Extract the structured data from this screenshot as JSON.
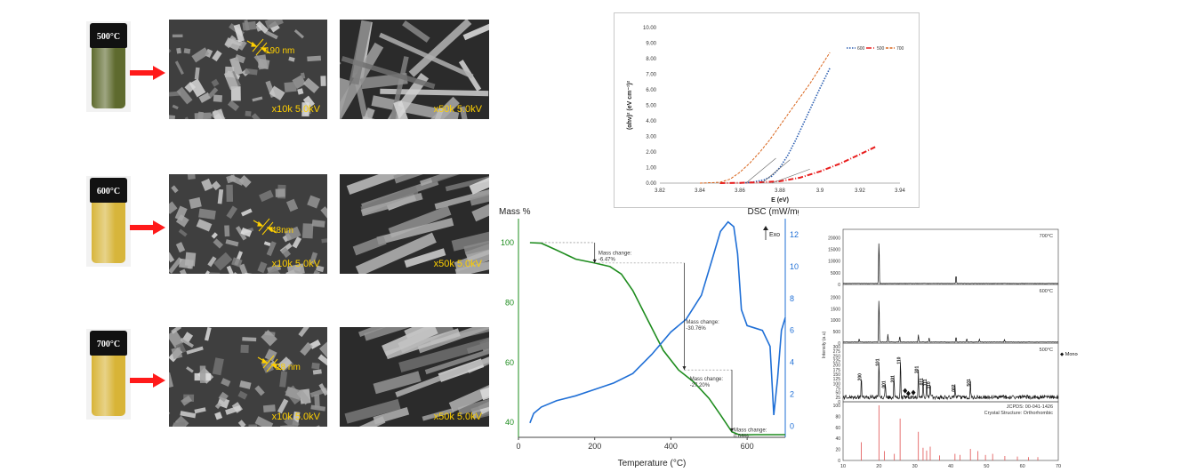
{
  "samples": [
    {
      "temp": "500°C",
      "glass_color": "#5e6a2e",
      "sem_low_caption": "x10k  5.0kV",
      "sem_high_caption": "x50k  5.0kV",
      "measure": "190 nm"
    },
    {
      "temp": "600°C",
      "glass_color": "#d7b53b",
      "sem_low_caption": "x10k  5.0kV",
      "sem_high_caption": "x50k  5.0kV",
      "measure": "48nm"
    },
    {
      "temp": "700°C",
      "glass_color": "#d8b437",
      "sem_low_caption": "x10k  5.0kV",
      "sem_high_caption": "x50k  5.0kV",
      "measure": "28 nm"
    }
  ],
  "arrow_color": "#ff1a1a",
  "chart_data": [
    {
      "type": "line",
      "xlabel": "E (eV)",
      "ylabel": "(αhν)² (eV cm⁻¹)²",
      "xlim": [
        3.82,
        3.94
      ],
      "ylim": [
        0,
        10
      ],
      "x_ticks": [
        "3.82",
        "3.84",
        "3.86",
        "3.88",
        "3.9",
        "3.92",
        "3.94"
      ],
      "y_ticks": [
        "0.00",
        "1.00",
        "2.00",
        "3.00",
        "4.00",
        "5.00",
        "6.00",
        "7.00",
        "8.00",
        "9.00",
        "10.00"
      ],
      "legend": "top-right",
      "series": [
        {
          "name": "600",
          "color": "#2a5db0",
          "x": [
            3.86,
            3.866,
            3.872,
            3.876,
            3.88,
            3.884,
            3.888,
            3.892,
            3.896,
            3.9,
            3.905
          ],
          "y": [
            0.0,
            0.05,
            0.2,
            0.45,
            1.0,
            1.8,
            2.8,
            3.9,
            5.0,
            6.1,
            7.4
          ]
        },
        {
          "name": "500",
          "color": "#e81d1d",
          "x": [
            3.85,
            3.86,
            3.87,
            3.88,
            3.89,
            3.9,
            3.91,
            3.92,
            3.928
          ],
          "y": [
            0.0,
            0.02,
            0.05,
            0.12,
            0.35,
            0.75,
            1.25,
            1.85,
            2.35
          ]
        },
        {
          "name": "700",
          "color": "#d9651c",
          "x": [
            3.84,
            3.85,
            3.855,
            3.86,
            3.865,
            3.87,
            3.875,
            3.88,
            3.885,
            3.89,
            3.895,
            3.9,
            3.905
          ],
          "y": [
            0.0,
            0.05,
            0.25,
            0.7,
            1.3,
            2.0,
            2.8,
            3.7,
            4.6,
            5.5,
            6.4,
            7.4,
            8.4
          ]
        }
      ]
    },
    {
      "type": "line",
      "xlabel": "Temperature (°C)",
      "ylabel": "Mass %",
      "ylabel_right": "DSC (mW/mg)",
      "exo_label": "Exo",
      "xlim": [
        0,
        700
      ],
      "ylim": [
        35,
        108
      ],
      "ylim_right": [
        -0.7,
        13
      ],
      "x_ticks": [
        "0",
        "200",
        "400",
        "600"
      ],
      "y_ticks": [
        "40",
        "60",
        "80",
        "100"
      ],
      "y_ticks_right": [
        "0",
        "2",
        "4",
        "6",
        "8",
        "10",
        "12"
      ],
      "series": [
        {
          "name": "Mass",
          "color": "#1e8c1e",
          "x": [
            30,
            60,
            100,
            150,
            200,
            240,
            270,
            300,
            340,
            380,
            420,
            460,
            500,
            530,
            560,
            580,
            620,
            700
          ],
          "y": [
            100,
            99.8,
            97.5,
            94.5,
            93.2,
            92.0,
            89.5,
            84.0,
            74.0,
            64.0,
            57.5,
            53.5,
            48.0,
            42.5,
            36.8,
            35.8,
            35.9,
            35.9
          ]
        },
        {
          "name": "DSC",
          "color": "#1f6fd6",
          "x": [
            30,
            40,
            60,
            100,
            150,
            200,
            250,
            300,
            350,
            400,
            440,
            480,
            510,
            530,
            550,
            565,
            575,
            585,
            600,
            640,
            660,
            670,
            680,
            690,
            700
          ],
          "y": [
            0.2,
            0.8,
            1.2,
            1.6,
            1.9,
            2.3,
            2.7,
            3.3,
            4.5,
            5.9,
            6.7,
            8.2,
            10.6,
            12.2,
            12.8,
            12.5,
            10.8,
            7.3,
            6.3,
            6.0,
            5.0,
            0.7,
            3.0,
            6.0,
            6.8
          ]
        }
      ],
      "annotations": [
        {
          "text": [
            "Mass change:",
            "-6.47%"
          ],
          "x": 205,
          "y": 96
        },
        {
          "text": [
            "Mass change:",
            "-30.76%"
          ],
          "x": 435,
          "y": 73
        },
        {
          "text": [
            "Mass change:",
            "-27.20%"
          ],
          "x": 445,
          "y": 54
        },
        {
          "text": [
            "Mass change:",
            "0.09%"
          ],
          "x": 560,
          "y": 37
        }
      ]
    },
    {
      "type": "line",
      "xlabel": "2θ (degree)",
      "ylabel": "Intensity (a.u)",
      "xlim": [
        10,
        70
      ],
      "x_ticks": [
        "10",
        "20",
        "30",
        "40",
        "50",
        "60",
        "70"
      ],
      "panels": [
        {
          "label": "700°C",
          "ylim": [
            0,
            22000
          ],
          "y_ticks": [
            "0",
            "5000",
            "10000",
            "15000",
            "20000"
          ],
          "peaks": [
            [
              20.0,
              19000
            ],
            [
              41.5,
              3600
            ]
          ]
        },
        {
          "label": "600°C",
          "ylim": [
            0,
            2400
          ],
          "y_ticks": [
            "0",
            "500",
            "1000",
            "1500",
            "2000"
          ],
          "peaks": [
            [
              14.5,
              150
            ],
            [
              20.0,
              2000
            ],
            [
              22.5,
              350
            ],
            [
              25.8,
              250
            ],
            [
              31.0,
              320
            ],
            [
              34.0,
              180
            ],
            [
              41.5,
              230
            ],
            [
              44.5,
              150
            ],
            [
              48.0,
              130
            ],
            [
              55.0,
              120
            ]
          ]
        },
        {
          "label": "500°C",
          "ylim": [
            0,
            300
          ],
          "y_ticks": [
            "0",
            "25",
            "50",
            "75",
            "100",
            "125",
            "150",
            "175",
            "200",
            "225",
            "250",
            "275",
            "300"
          ],
          "legend": "◆ Monoclinic",
          "peak_labels": [
            "200",
            "101",
            "001",
            "201",
            "110",
            "301",
            "011",
            "111",
            "310",
            "002",
            "501"
          ],
          "peaks": [
            [
              15.1,
              120
            ],
            [
              20.0,
              200
            ],
            [
              21.8,
              80
            ],
            [
              24.2,
              110
            ],
            [
              26.0,
              210
            ],
            [
              31.0,
              160
            ],
            [
              32.3,
              95
            ],
            [
              33.3,
              90
            ],
            [
              34.3,
              75
            ],
            [
              41.2,
              60
            ],
            [
              45.5,
              90
            ]
          ]
        },
        {
          "label_lines": [
            "JCPDS: 00-041-1426",
            "Crystal Structure: Orthorhombic"
          ],
          "ylim": [
            0,
            100
          ],
          "y_ticks": [
            "0",
            "20",
            "40",
            "60",
            "80",
            "100"
          ],
          "sticks": [
            [
              15.1,
              33
            ],
            [
              20.0,
              100
            ],
            [
              21.5,
              17
            ],
            [
              24.3,
              12
            ],
            [
              25.9,
              76
            ],
            [
              31.0,
              52
            ],
            [
              32.3,
              23
            ],
            [
              33.3,
              18
            ],
            [
              34.3,
              25
            ],
            [
              36.9,
              9
            ],
            [
              41.2,
              12
            ],
            [
              42.6,
              10
            ],
            [
              45.5,
              21
            ],
            [
              47.6,
              17
            ],
            [
              49.7,
              10
            ],
            [
              51.7,
              12
            ],
            [
              55.1,
              8
            ],
            [
              58.6,
              7
            ],
            [
              61.7,
              6
            ],
            [
              64.3,
              6
            ]
          ]
        }
      ]
    }
  ]
}
